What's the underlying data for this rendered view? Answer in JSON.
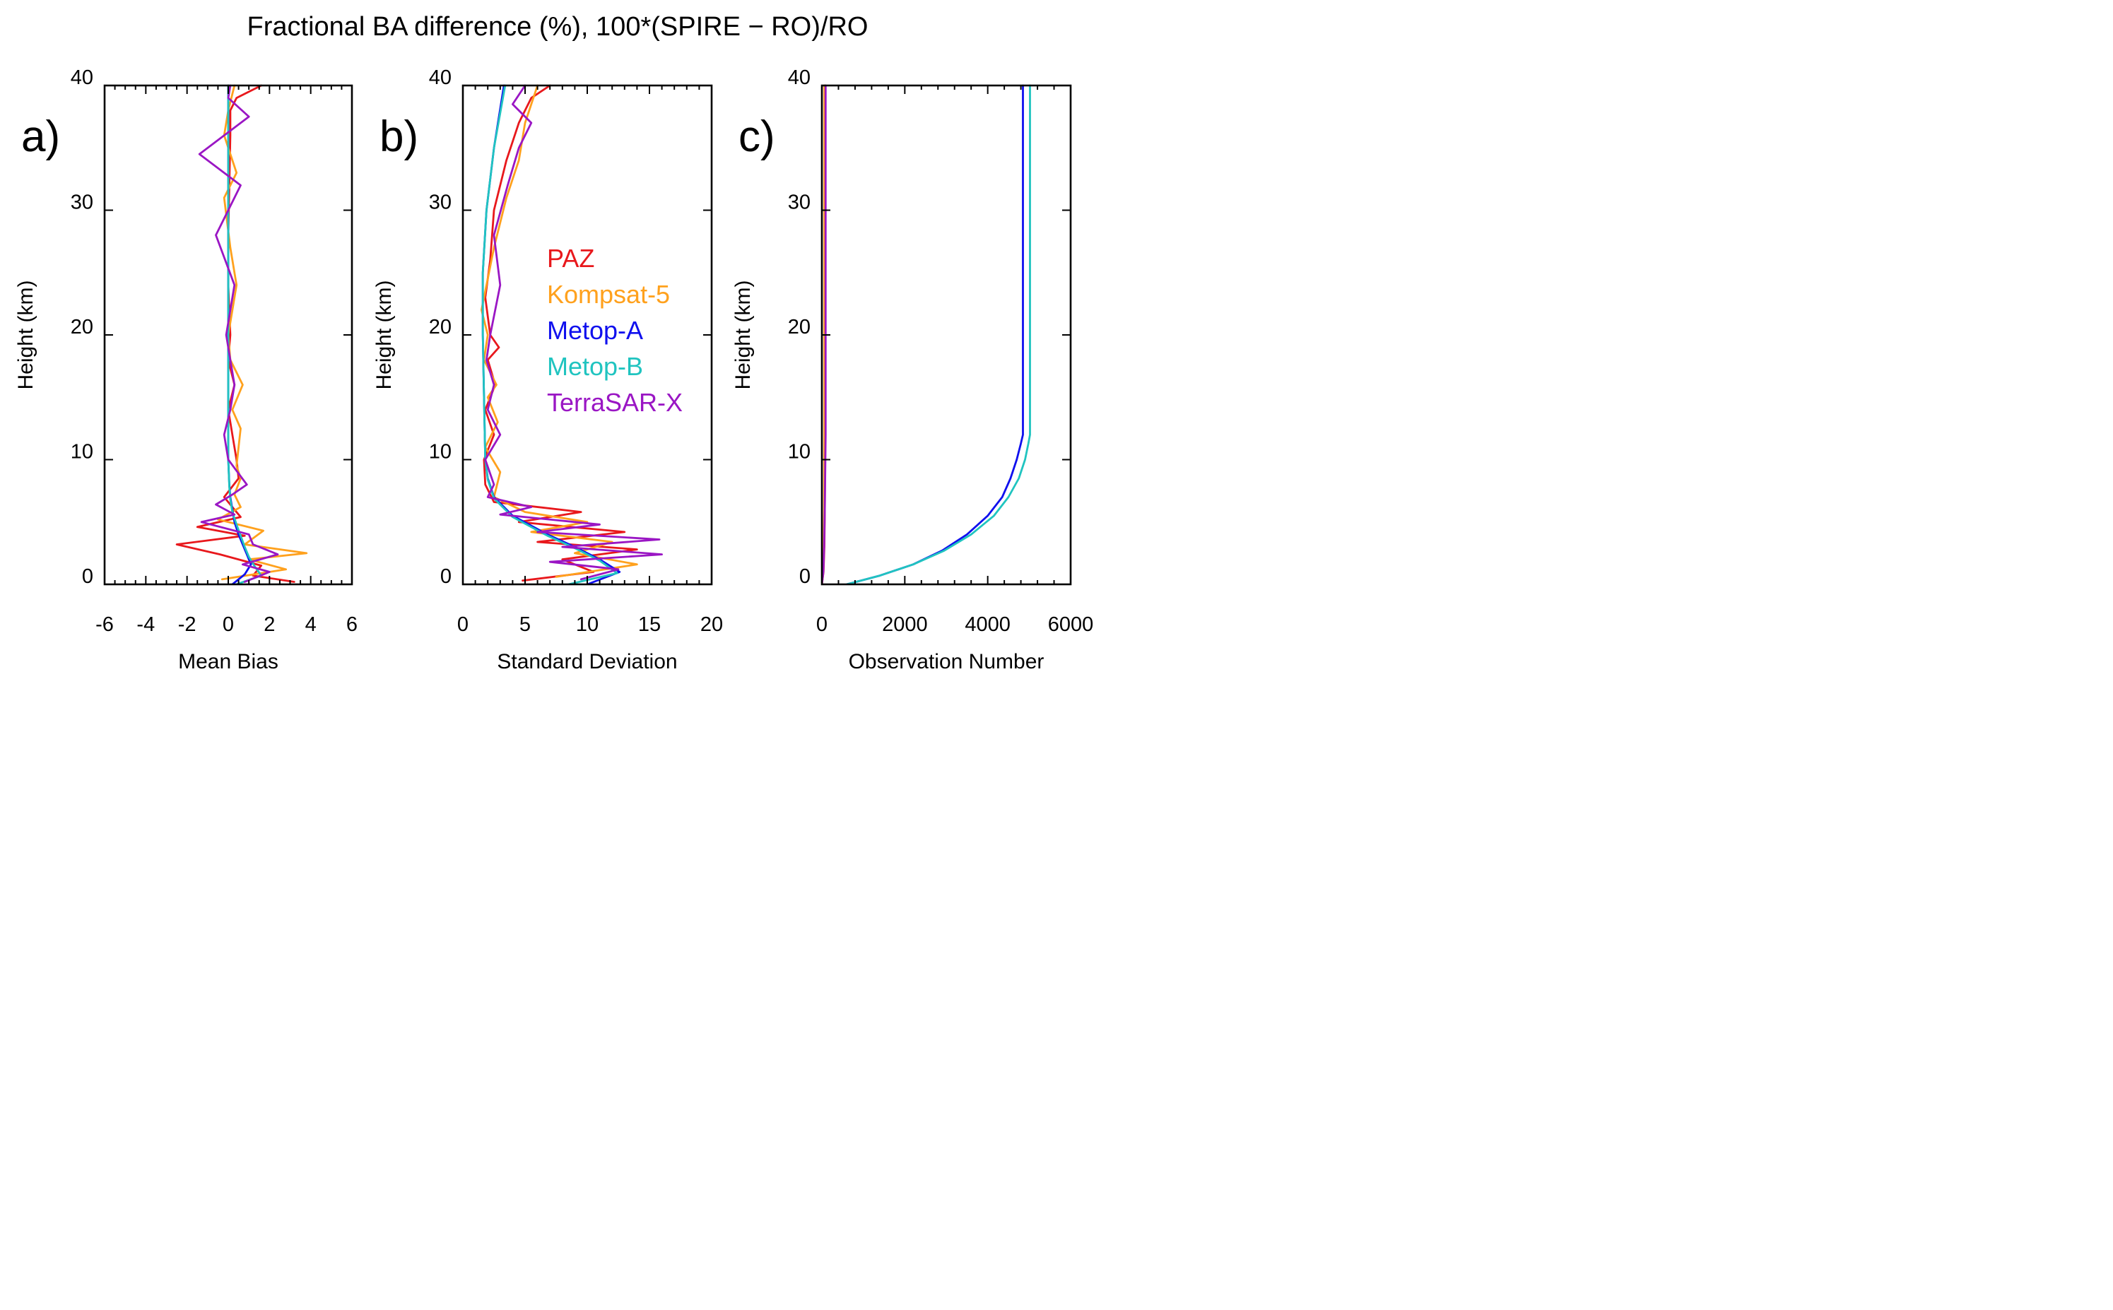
{
  "title": "Fractional BA difference (%), 100*(SPIRE − RO)/RO",
  "colors": {
    "PAZ": "#e8181c",
    "Kompsat-5": "#ffa11d",
    "Metop-A": "#1010ee",
    "Metop-B": "#20c4c0",
    "TerraSAR-X": "#9a16c4"
  },
  "legend": [
    {
      "name": "PAZ",
      "color": "#e8181c"
    },
    {
      "name": "Kompsat-5",
      "color": "#ffa11d"
    },
    {
      "name": "Metop-A",
      "color": "#1010ee"
    },
    {
      "name": "Metop-B",
      "color": "#20c4c0"
    },
    {
      "name": "TerraSAR-X",
      "color": "#9a16c4"
    }
  ],
  "chart_data": [
    {
      "type": "line",
      "panel_label": "a)",
      "xlabel": "Mean Bias",
      "ylabel": "Height (km)",
      "xlim": [
        -6,
        6
      ],
      "ylim": [
        0,
        40
      ],
      "xticks": [
        "-6",
        "-4",
        "-2",
        "0",
        "2",
        "4",
        "6"
      ],
      "yticks": [
        "0",
        "10",
        "20",
        "30",
        "40"
      ],
      "series": [
        {
          "name": "PAZ",
          "x": [
            3.2,
            1.2,
            1.6,
            -0.4,
            -2.5,
            0.8,
            -1.5,
            0.6,
            0.2,
            -0.2,
            0.5,
            0.4,
            0.2,
            0.0,
            0.3,
            0.0,
            0.1,
            0.0,
            0.0,
            0.05,
            0.1,
            0.1,
            0.4,
            1.6
          ],
          "y": [
            0.2,
            0.7,
            1.5,
            2.4,
            3.2,
            3.9,
            4.6,
            5.4,
            6.2,
            7.0,
            8.5,
            10.0,
            12.0,
            14.0,
            16.0,
            18.0,
            20.0,
            24.0,
            28.0,
            32.0,
            36.0,
            38.0,
            39.0,
            40.0
          ]
        },
        {
          "name": "Kompsat-5",
          "x": [
            -0.3,
            2.8,
            1.0,
            3.8,
            0.8,
            1.7,
            -0.5,
            0.6,
            0.3,
            0.6,
            0.4,
            0.5,
            0.6,
            0.2,
            0.7,
            0.1,
            0.0,
            0.4,
            0.1,
            -0.2,
            0.4,
            -0.2,
            0.0,
            0.3
          ],
          "y": [
            0.4,
            1.2,
            2.0,
            2.5,
            3.2,
            4.3,
            5.2,
            6.2,
            7.2,
            8.5,
            9.5,
            11.0,
            12.5,
            14.0,
            16.0,
            18.0,
            20.0,
            24.0,
            27.0,
            31.0,
            33.0,
            36.0,
            38.0,
            40.0
          ]
        },
        {
          "name": "Metop-A",
          "x": [
            0.2,
            0.8,
            1.1,
            0.9,
            0.7,
            0.5,
            0.3,
            0.2,
            0.1,
            0.05,
            0.0,
            0.0,
            0.0,
            0.0,
            0.0
          ],
          "y": [
            0.0,
            0.8,
            1.6,
            2.4,
            3.2,
            4.0,
            5.0,
            6.0,
            7.0,
            8.0,
            10.0,
            15.0,
            20.0,
            30.0,
            40.0
          ]
        },
        {
          "name": "Metop-B",
          "x": [
            0.4,
            1.6,
            1.3,
            1.0,
            0.8,
            0.6,
            0.4,
            0.2,
            0.1,
            0.05,
            0.0,
            0.0,
            0.0,
            0.0,
            0.0
          ],
          "y": [
            0.0,
            0.7,
            1.4,
            2.2,
            3.0,
            3.9,
            4.8,
            5.8,
            6.8,
            7.8,
            10.0,
            15.0,
            20.0,
            30.0,
            40.0
          ]
        },
        {
          "name": "TerraSAR-X",
          "x": [
            0.8,
            2.0,
            0.7,
            2.4,
            1.2,
            1.0,
            -1.3,
            0.3,
            -0.6,
            0.2,
            0.9,
            0.0,
            -0.2,
            0.1,
            0.3,
            0.1,
            -0.1,
            0.3,
            -0.6,
            0.6,
            -1.4,
            1.0,
            0.0,
            0.1
          ],
          "y": [
            0.2,
            1.0,
            1.6,
            2.4,
            3.2,
            4.0,
            5.0,
            5.6,
            6.4,
            7.2,
            8.0,
            10.0,
            12.0,
            14.0,
            16.0,
            18.0,
            20.0,
            24.0,
            28.0,
            32.0,
            34.5,
            37.5,
            39.0,
            40.0
          ]
        }
      ]
    },
    {
      "type": "line",
      "panel_label": "b)",
      "xlabel": "Standard Deviation",
      "ylabel": "Height (km)",
      "xlim": [
        0,
        20
      ],
      "ylim": [
        0,
        40
      ],
      "xticks": [
        "0",
        "5",
        "10",
        "15",
        "20"
      ],
      "yticks": [
        "0",
        "10",
        "20",
        "30",
        "40"
      ],
      "series": [
        {
          "name": "PAZ",
          "x": [
            4.8,
            10.5,
            8.0,
            14.0,
            6.0,
            13.0,
            4.5,
            9.5,
            2.5,
            1.8,
            1.7,
            2.5,
            1.8,
            2.6,
            2.0,
            2.9,
            2.2,
            1.8,
            2.2,
            2.5,
            3.5,
            4.5,
            5.5,
            7.0
          ],
          "y": [
            0.3,
            1.0,
            2.0,
            2.8,
            3.4,
            4.2,
            5.0,
            5.8,
            6.6,
            8.0,
            10.0,
            12.0,
            14.0,
            16.0,
            18.0,
            19.0,
            20.0,
            23.0,
            26.0,
            30.0,
            34.0,
            37.0,
            39.0,
            40.0
          ]
        },
        {
          "name": "Kompsat-5",
          "x": [
            7.5,
            14.0,
            9.0,
            12.0,
            5.5,
            10.0,
            5.0,
            2.5,
            3.0,
            1.8,
            2.8,
            2.0,
            2.7,
            1.7,
            2.0,
            1.5,
            2.5,
            3.5,
            4.5,
            5.0,
            6.0
          ],
          "y": [
            0.6,
            1.6,
            2.5,
            3.4,
            4.2,
            5.0,
            5.8,
            7.0,
            9.0,
            11.0,
            13.0,
            15.0,
            16.0,
            18.0,
            20.0,
            22.0,
            27.0,
            31.0,
            34.0,
            37.0,
            40.0
          ]
        },
        {
          "name": "Metop-A",
          "x": [
            10.0,
            12.6,
            11.0,
            9.0,
            6.8,
            4.0,
            2.5,
            2.0,
            1.8,
            1.7,
            1.6,
            1.6,
            1.9,
            2.5,
            3.3
          ],
          "y": [
            0.0,
            1.0,
            2.0,
            3.0,
            4.0,
            5.5,
            7.0,
            8.5,
            10.0,
            15.0,
            20.0,
            25.0,
            30.0,
            35.0,
            40.0
          ]
        },
        {
          "name": "Metop-B",
          "x": [
            8.5,
            12.4,
            11.0,
            9.0,
            6.8,
            4.0,
            2.5,
            2.0,
            1.8,
            1.7,
            1.6,
            1.6,
            1.9,
            2.5,
            3.4
          ],
          "y": [
            0.0,
            0.9,
            1.9,
            2.9,
            3.9,
            5.4,
            6.9,
            8.4,
            10.0,
            15.0,
            20.0,
            25.0,
            30.0,
            35.0,
            40.0
          ]
        },
        {
          "name": "TerraSAR-X",
          "x": [
            9.5,
            12.5,
            7.0,
            16.0,
            8.0,
            15.8,
            6.0,
            11.0,
            3.0,
            5.5,
            2.0,
            2.5,
            1.8,
            3.0,
            2.0,
            2.5,
            1.9,
            2.2,
            3.0,
            2.5,
            3.6,
            4.5,
            5.5,
            4.0,
            5.0
          ],
          "y": [
            0.4,
            1.2,
            1.8,
            2.4,
            3.0,
            3.6,
            4.2,
            4.8,
            5.6,
            6.2,
            7.0,
            8.0,
            10.0,
            12.0,
            14.0,
            16.0,
            18.0,
            20.0,
            24.0,
            28.0,
            32.0,
            35.0,
            37.0,
            38.5,
            40.0
          ]
        }
      ]
    },
    {
      "type": "line",
      "panel_label": "c)",
      "xlabel": "Observation Number",
      "ylabel": "Height (km)",
      "xlim": [
        0,
        6000
      ],
      "ylim": [
        0,
        40
      ],
      "xticks": [
        "0",
        "2000",
        "4000",
        "6000"
      ],
      "yticks": [
        "0",
        "10",
        "20",
        "30",
        "40"
      ],
      "series": [
        {
          "name": "PAZ",
          "x": [
            0,
            40,
            60,
            70,
            80,
            80
          ],
          "y": [
            0.0,
            1.0,
            3.0,
            6.0,
            12.0,
            40.0
          ]
        },
        {
          "name": "Kompsat-5",
          "x": [
            0,
            30,
            45,
            55,
            60,
            60
          ],
          "y": [
            0.0,
            1.0,
            3.0,
            6.0,
            12.0,
            40.0
          ]
        },
        {
          "name": "Metop-A",
          "x": [
            600,
            1400,
            2200,
            2900,
            3500,
            4000,
            4350,
            4550,
            4700,
            4800,
            4850,
            4850,
            4850
          ],
          "y": [
            0.0,
            0.7,
            1.6,
            2.7,
            4.0,
            5.5,
            7.0,
            8.5,
            10.0,
            11.3,
            12.0,
            20.0,
            40.0
          ]
        },
        {
          "name": "Metop-B",
          "x": [
            600,
            1400,
            2200,
            2950,
            3600,
            4150,
            4500,
            4750,
            4900,
            4980,
            5020,
            5020,
            5020
          ],
          "y": [
            0.0,
            0.7,
            1.6,
            2.7,
            4.0,
            5.5,
            7.0,
            8.5,
            10.0,
            11.3,
            12.0,
            20.0,
            40.0
          ]
        },
        {
          "name": "TerraSAR-X",
          "x": [
            0,
            35,
            55,
            70,
            90,
            90
          ],
          "y": [
            0.0,
            1.0,
            3.0,
            6.0,
            12.0,
            40.0
          ]
        }
      ]
    }
  ]
}
